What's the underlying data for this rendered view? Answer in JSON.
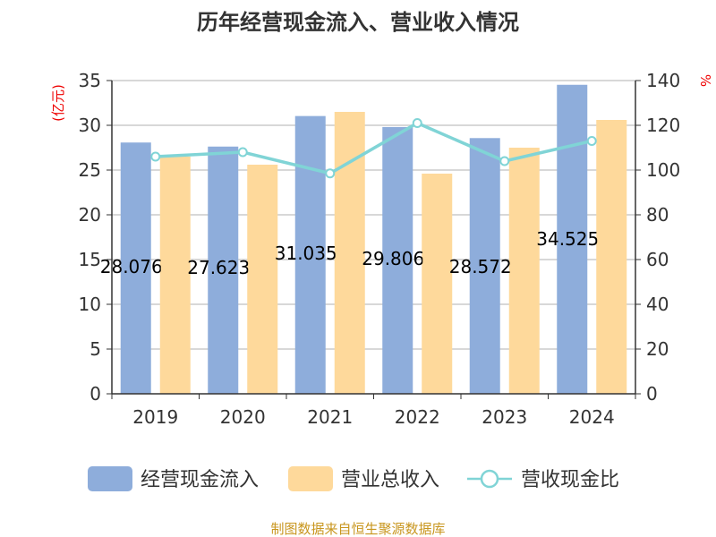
{
  "chart_data": {
    "type": "bar",
    "title": "历年经营现金流入、营业收入情况",
    "ylabel": "(亿元)",
    "y2label": "%",
    "categories": [
      "2019",
      "2020",
      "2021",
      "2022",
      "2023",
      "2024"
    ],
    "ylim": [
      0,
      35
    ],
    "y2lim": [
      0,
      140
    ],
    "yticks": [
      "0",
      "5",
      "10",
      "15",
      "20",
      "25",
      "30",
      "35"
    ],
    "y2ticks": [
      "0",
      "20",
      "40",
      "60",
      "80",
      "100",
      "120",
      "140"
    ],
    "series": [
      {
        "name": "经营现金流入",
        "type": "bar",
        "color": "#8eaddb",
        "values": [
          28.076,
          27.623,
          31.035,
          29.806,
          28.572,
          34.525
        ],
        "labels": [
          "28.076",
          "27.623",
          "31.035",
          "29.806",
          "28.572",
          "34.525"
        ]
      },
      {
        "name": "营业总收入",
        "type": "bar",
        "color": "#fed99b",
        "values": [
          26.5,
          25.6,
          31.5,
          24.6,
          27.5,
          30.6
        ]
      },
      {
        "name": "营收现金比",
        "type": "line",
        "axis": "right",
        "color": "#80d4d6",
        "values": [
          106,
          108,
          98.5,
          121,
          104,
          113
        ]
      }
    ],
    "legend_position": "bottom",
    "grid": true
  },
  "footer": "制图数据来自恒生聚源数据库"
}
